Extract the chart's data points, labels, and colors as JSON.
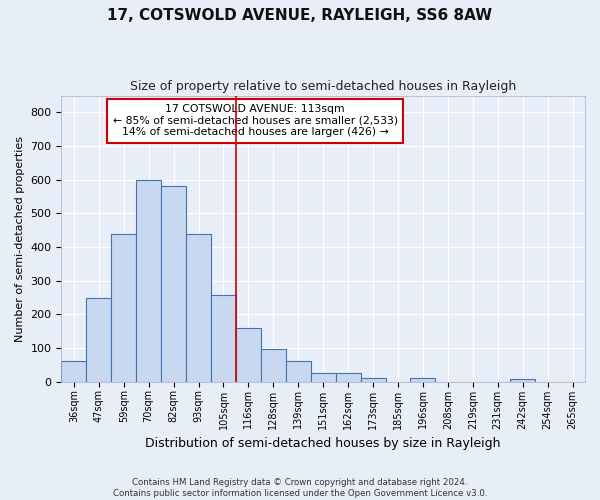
{
  "title": "17, COTSWOLD AVENUE, RAYLEIGH, SS6 8AW",
  "subtitle": "Size of property relative to semi-detached houses in Rayleigh",
  "xlabel": "Distribution of semi-detached houses by size in Rayleigh",
  "ylabel": "Number of semi-detached properties",
  "categories": [
    "36sqm",
    "47sqm",
    "59sqm",
    "70sqm",
    "82sqm",
    "93sqm",
    "105sqm",
    "116sqm",
    "128sqm",
    "139sqm",
    "151sqm",
    "162sqm",
    "173sqm",
    "185sqm",
    "196sqm",
    "208sqm",
    "219sqm",
    "231sqm",
    "242sqm",
    "254sqm",
    "265sqm"
  ],
  "values": [
    60,
    250,
    440,
    600,
    580,
    438,
    258,
    158,
    97,
    62,
    25,
    25,
    10,
    0,
    10,
    0,
    0,
    0,
    7,
    0,
    0
  ],
  "bar_color": "#c8d8f0",
  "bar_edge_color": "#4472aa",
  "property_size_index": 7,
  "vline_color": "#cc0000",
  "annotation_text_line1": "17 COTSWOLD AVENUE: 113sqm",
  "annotation_text_line2": "← 85% of semi-detached houses are smaller (2,533)",
  "annotation_text_line3": "14% of semi-detached houses are larger (426) →",
  "annotation_box_color": "#ffffff",
  "annotation_box_edge_color": "#cc0000",
  "bg_color": "#e8eef8",
  "grid_color": "#ffffff",
  "ylim": [
    0,
    850
  ],
  "yticks": [
    0,
    100,
    200,
    300,
    400,
    500,
    600,
    700,
    800
  ],
  "title_fontsize": 11,
  "subtitle_fontsize": 9,
  "footer_line1": "Contains HM Land Registry data © Crown copyright and database right 2024.",
  "footer_line2": "Contains public sector information licensed under the Open Government Licence v3.0."
}
